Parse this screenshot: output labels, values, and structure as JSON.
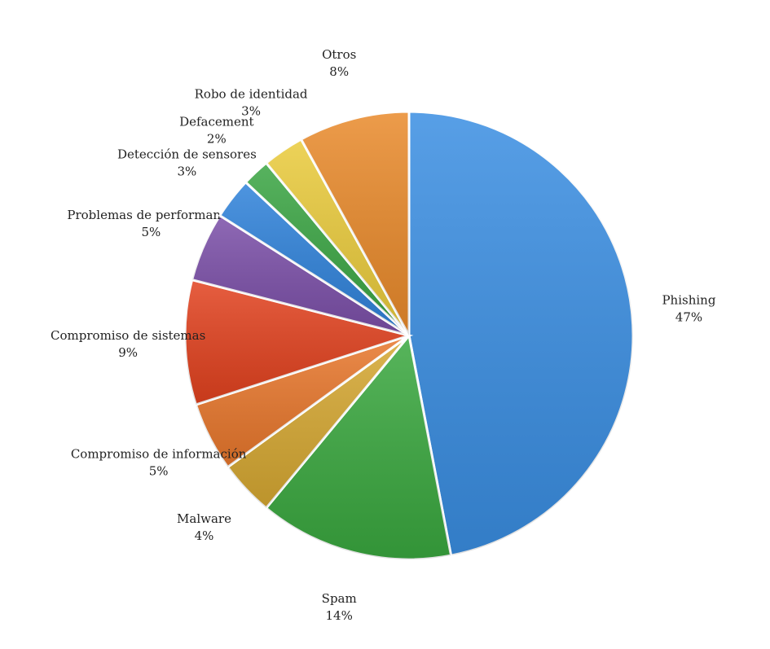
{
  "chart_data": {
    "type": "pie",
    "categories": [
      "Phishing",
      "Spam",
      "Malware",
      "Compromiso de información",
      "Compromiso de sistemas",
      "Problemas de performance",
      "Detección de sensores",
      "Defacement",
      "Robo de identidad",
      "Otros"
    ],
    "values": [
      47,
      14,
      4,
      5,
      9,
      5,
      3,
      2,
      3,
      8
    ],
    "value_labels": [
      "47%",
      "14%",
      "4%",
      "5%",
      "9%",
      "5%",
      "3%",
      "2%",
      "3%",
      "8%"
    ],
    "colors": [
      "#3a8ee2",
      "#3aa83f",
      "#d6a832",
      "#e8772c",
      "#e2421f",
      "#7b4fa8",
      "#2f82da",
      "#3aa543",
      "#eacb3c",
      "#e98a2b"
    ]
  }
}
